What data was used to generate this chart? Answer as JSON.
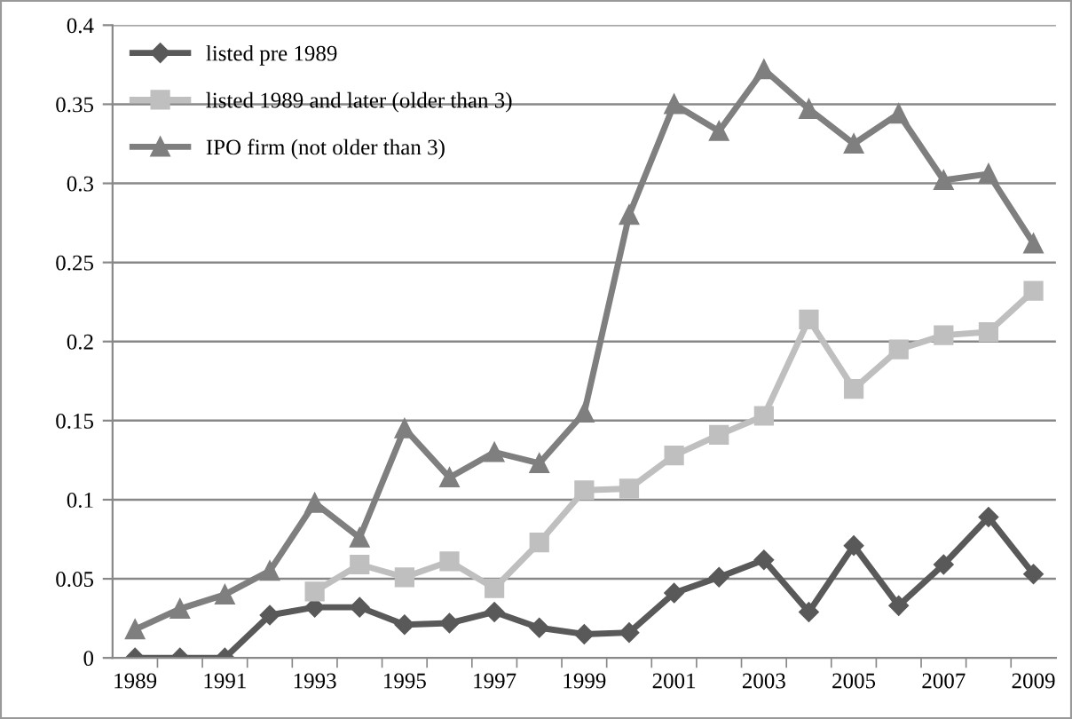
{
  "chart_data": {
    "type": "line",
    "categories": [
      "1989",
      null,
      "1991",
      null,
      "1993",
      null,
      "1995",
      null,
      "1997",
      null,
      "1999",
      null,
      "2001",
      null,
      "2003",
      null,
      "2005",
      null,
      "2007",
      null,
      "2009"
    ],
    "series": [
      {
        "name": "listed pre 1989",
        "color": "#595959",
        "marker": "diamond",
        "values": [
          0,
          0,
          0,
          0.027,
          0.032,
          0.032,
          0.021,
          0.022,
          0.029,
          0.019,
          0.015,
          0.016,
          0.041,
          0.051,
          0.062,
          0.029,
          0.071,
          0.033,
          0.059,
          0.089,
          0.053
        ]
      },
      {
        "name": "listed 1989 and later (older than 3)",
        "color": "#bfbfbf",
        "marker": "square",
        "values": [
          null,
          null,
          null,
          null,
          0.042,
          0.059,
          0.051,
          0.061,
          0.044,
          0.073,
          0.106,
          0.107,
          0.128,
          0.141,
          0.153,
          0.214,
          0.17,
          0.195,
          0.204,
          0.206,
          0.232
        ]
      },
      {
        "name": "IPO firm (not older than 3)",
        "color": "#7f7f7f",
        "marker": "triangle",
        "values": [
          0.018,
          0.031,
          0.04,
          0.055,
          0.098,
          0.076,
          0.145,
          0.114,
          0.13,
          0.123,
          0.155,
          0.28,
          0.35,
          0.333,
          0.372,
          0.347,
          0.325,
          0.344,
          0.302,
          0.306,
          0.262
        ]
      }
    ],
    "ylim": [
      0,
      0.4
    ],
    "yticks": [
      {
        "value": 0,
        "label": "0"
      },
      0.05,
      0.1,
      0.15,
      0.2,
      0.25,
      0.3,
      0.35,
      0.4
    ],
    "grid": "y",
    "legend": "top left",
    "line_style": "solid"
  }
}
